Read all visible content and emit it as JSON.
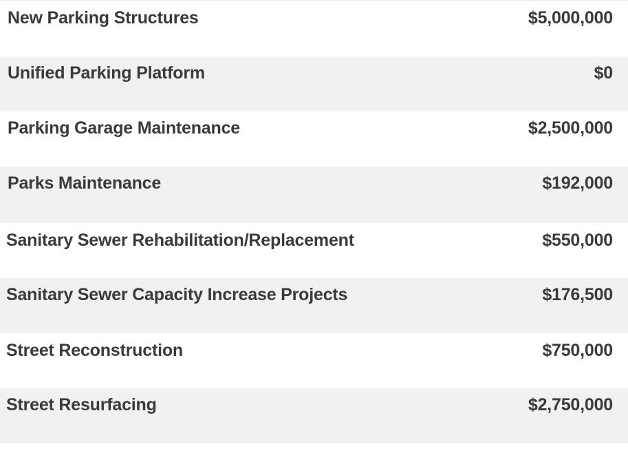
{
  "rows": [
    {
      "label": "New Parking Structures",
      "amount": "$5,000,000"
    },
    {
      "label": "Unified Parking Platform",
      "amount": "$0"
    },
    {
      "label": "Parking Garage Maintenance",
      "amount": "$2,500,000"
    },
    {
      "label": "Parks Maintenance",
      "amount": "$192,000"
    },
    {
      "label": "Sanitary Sewer Rehabilitation/Replacement",
      "amount": "$550,000"
    },
    {
      "label": "Sanitary Sewer Capacity Increase Projects",
      "amount": "$176,500"
    },
    {
      "label": "Street Reconstruction",
      "amount": "$750,000"
    },
    {
      "label": "Street Resurfacing",
      "amount": "$2,750,000"
    }
  ],
  "colors": {
    "shaded_row": "#f1f1f1",
    "plain_row": "#ffffff",
    "text": "#3a3a3a"
  }
}
